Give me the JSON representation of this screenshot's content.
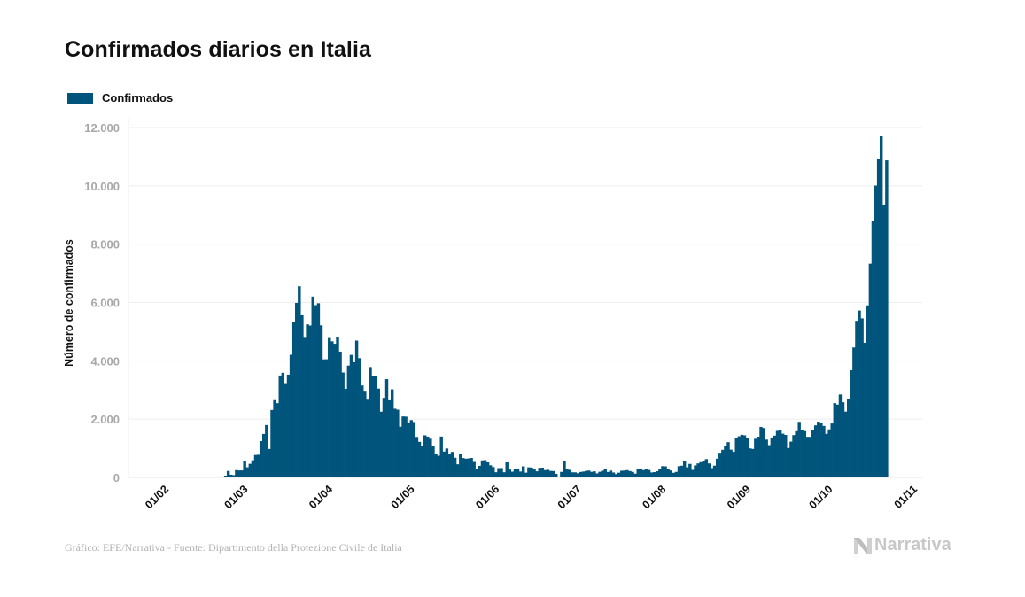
{
  "header": {
    "title": "Confirmados diarios en Italia"
  },
  "legend": {
    "label": "Confirmados",
    "color": "#01547b"
  },
  "footer": {
    "source": "Gráfico: EFE/Narrativa - Fuente: Dipartimento della Protezione Civile de Italia",
    "logo_text": "Narrativa",
    "logo_icon": "narrativa-n-icon"
  },
  "chart_data": {
    "type": "bar",
    "title": "Confirmados diarios en Italia",
    "xlabel": "",
    "ylabel": "Número de confirmados",
    "ylim": [
      0,
      12000
    ],
    "yticks": [
      0,
      2000,
      4000,
      6000,
      8000,
      10000,
      12000
    ],
    "ytick_labels": [
      "0",
      "2.000",
      "4.000",
      "6.000",
      "8.000",
      "10.000",
      "12.000"
    ],
    "grid": true,
    "legend_position": "top-left",
    "series_name": "Confirmados",
    "color": "#01547b",
    "x_start_date": "2020-02-01",
    "x_end_date": "2020-11-01",
    "xticks": [
      "01/02",
      "01/03",
      "01/04",
      "01/05",
      "01/06",
      "01/07",
      "01/08",
      "01/09",
      "01/10",
      "01/11"
    ],
    "xtick_day_offsets": [
      0,
      29,
      60,
      90,
      121,
      151,
      182,
      213,
      243,
      274
    ],
    "start_date": "2020-02-01",
    "values": [
      3,
      0,
      0,
      0,
      0,
      0,
      1,
      0,
      0,
      0,
      0,
      0,
      0,
      0,
      0,
      0,
      0,
      0,
      0,
      0,
      0,
      14,
      62,
      221,
      93,
      78,
      250,
      238,
      240,
      561,
      347,
      466,
      587,
      769,
      778,
      1247,
      1492,
      1797,
      977,
      2313,
      2651,
      2547,
      3497,
      3590,
      3233,
      3526,
      4207,
      5322,
      5986,
      6557,
      5560,
      4789,
      5249,
      5210,
      6203,
      5909,
      5974,
      5217,
      4050,
      4053,
      4782,
      4668,
      4585,
      4805,
      4316,
      3599,
      3039,
      3836,
      4204,
      3951,
      4694,
      4092,
      3153,
      2972,
      2667,
      3786,
      3493,
      3491,
      3047,
      2256,
      2729,
      3370,
      2646,
      3021,
      2357,
      2324,
      1739,
      2091,
      2086,
      1872,
      1965,
      1900,
      1389,
      1221,
      1075,
      1444,
      1401,
      1327,
      1083,
      802,
      744,
      1402,
      888,
      992,
      789,
      875,
      675,
      451,
      813,
      665,
      642,
      652,
      669,
      531,
      300,
      397,
      584,
      593,
      516,
      416,
      355,
      178,
      318,
      321,
      177,
      518,
      270,
      197,
      280,
      283,
      202,
      379,
      163,
      346,
      338,
      301,
      210,
      329,
      333,
      251,
      262,
      224,
      218,
      122,
      0,
      190,
      577,
      296,
      259,
      175,
      174,
      142,
      187,
      201,
      223,
      235,
      192,
      208,
      138,
      193,
      229,
      276,
      188,
      234,
      169,
      114,
      162,
      230,
      233,
      249,
      219,
      190,
      129,
      282,
      306,
      252,
      275,
      255,
      170,
      181,
      212,
      289,
      386,
      379,
      295,
      239,
      159,
      190,
      384,
      402,
      552,
      347,
      463,
      259,
      412,
      481,
      523,
      574,
      629,
      479,
      320,
      403,
      642,
      845,
      947,
      1071,
      1210,
      953,
      878,
      1367,
      1411,
      1462,
      1444,
      1365,
      996,
      978,
      1326,
      1397,
      1733,
      1695,
      1297,
      1108,
      1370,
      1434,
      1597,
      1616,
      1501,
      1458,
      1008,
      1229,
      1452,
      1585,
      1907,
      1638,
      1587,
      1392,
      1391,
      1640,
      1786,
      1912,
      1869,
      1766,
      1494,
      1648,
      1851,
      2548,
      2499,
      2844,
      2578,
      2257,
      2677,
      3678,
      4458,
      5372,
      5724,
      5456,
      4619,
      5901,
      7332,
      8804,
      10010,
      10925,
      11705,
      9338,
      10874
    ]
  }
}
